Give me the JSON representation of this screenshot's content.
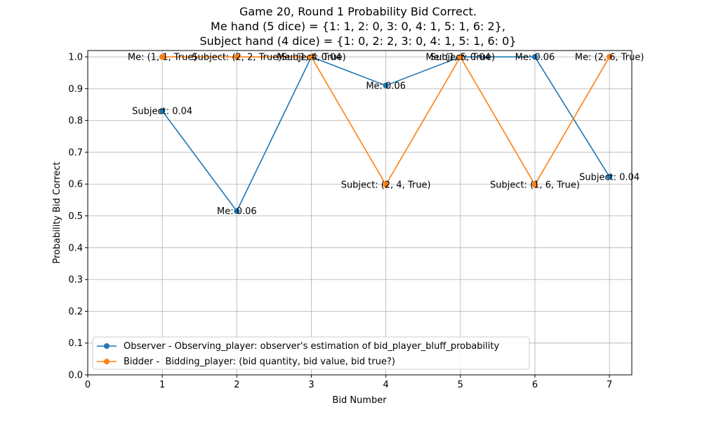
{
  "chart_data": {
    "type": "line",
    "title_lines": [
      "Game 20, Round 1 Probability Bid Correct.",
      "Me hand (5 dice) = {1: 1, 2: 0, 3: 0, 4: 1, 5: 1, 6: 2},",
      "Subject hand (4 dice) = {1: 0, 2: 2, 3: 0, 4: 1, 5: 1, 6: 0}"
    ],
    "xlabel": "Bid Number",
    "ylabel": "Probability Bid Correct",
    "xlim": [
      0,
      7.3
    ],
    "ylim": [
      0,
      1.02
    ],
    "xticks": [
      0,
      1,
      2,
      3,
      4,
      5,
      6,
      7
    ],
    "yticks": [
      0.0,
      0.1,
      0.2,
      0.3,
      0.4,
      0.5,
      0.6,
      0.7,
      0.8,
      0.9,
      1.0
    ],
    "grid": true,
    "legend_position": "lower-left",
    "series": [
      {
        "name": "Observer - Observing_player: observer's estimation of bid_player_bluff_probability",
        "color": "#1f77b4",
        "x": [
          1,
          2,
          3,
          4,
          5,
          6,
          7
        ],
        "y": [
          0.83,
          0.515,
          1.0,
          0.91,
          1.0,
          1.0,
          0.623
        ],
        "annotations": [
          "Subject: 0.04",
          "Me: 0.06",
          "Subject: 0.04",
          "Me: 0.06",
          "Subject: 0.04",
          "Me: 0.06",
          "Subject: 0.04"
        ]
      },
      {
        "name": "Bidder -  Bidding_player: (bid quantity, bid value, bid true?)",
        "color": "#ff7f0e",
        "x": [
          1,
          2,
          3,
          4,
          5,
          6,
          7
        ],
        "y": [
          1.0,
          1.0,
          1.0,
          0.598,
          1.0,
          0.598,
          1.0
        ],
        "annotations": [
          "Me: (1, 1, True)",
          "Subject: (2, 2, True)",
          "Me: (1, 4, True)",
          "Subject: (2, 4, True)",
          "Me: (1, 5, True)",
          "Subject: (1, 6, True)",
          "Me: (2, 6, True)"
        ]
      }
    ]
  }
}
